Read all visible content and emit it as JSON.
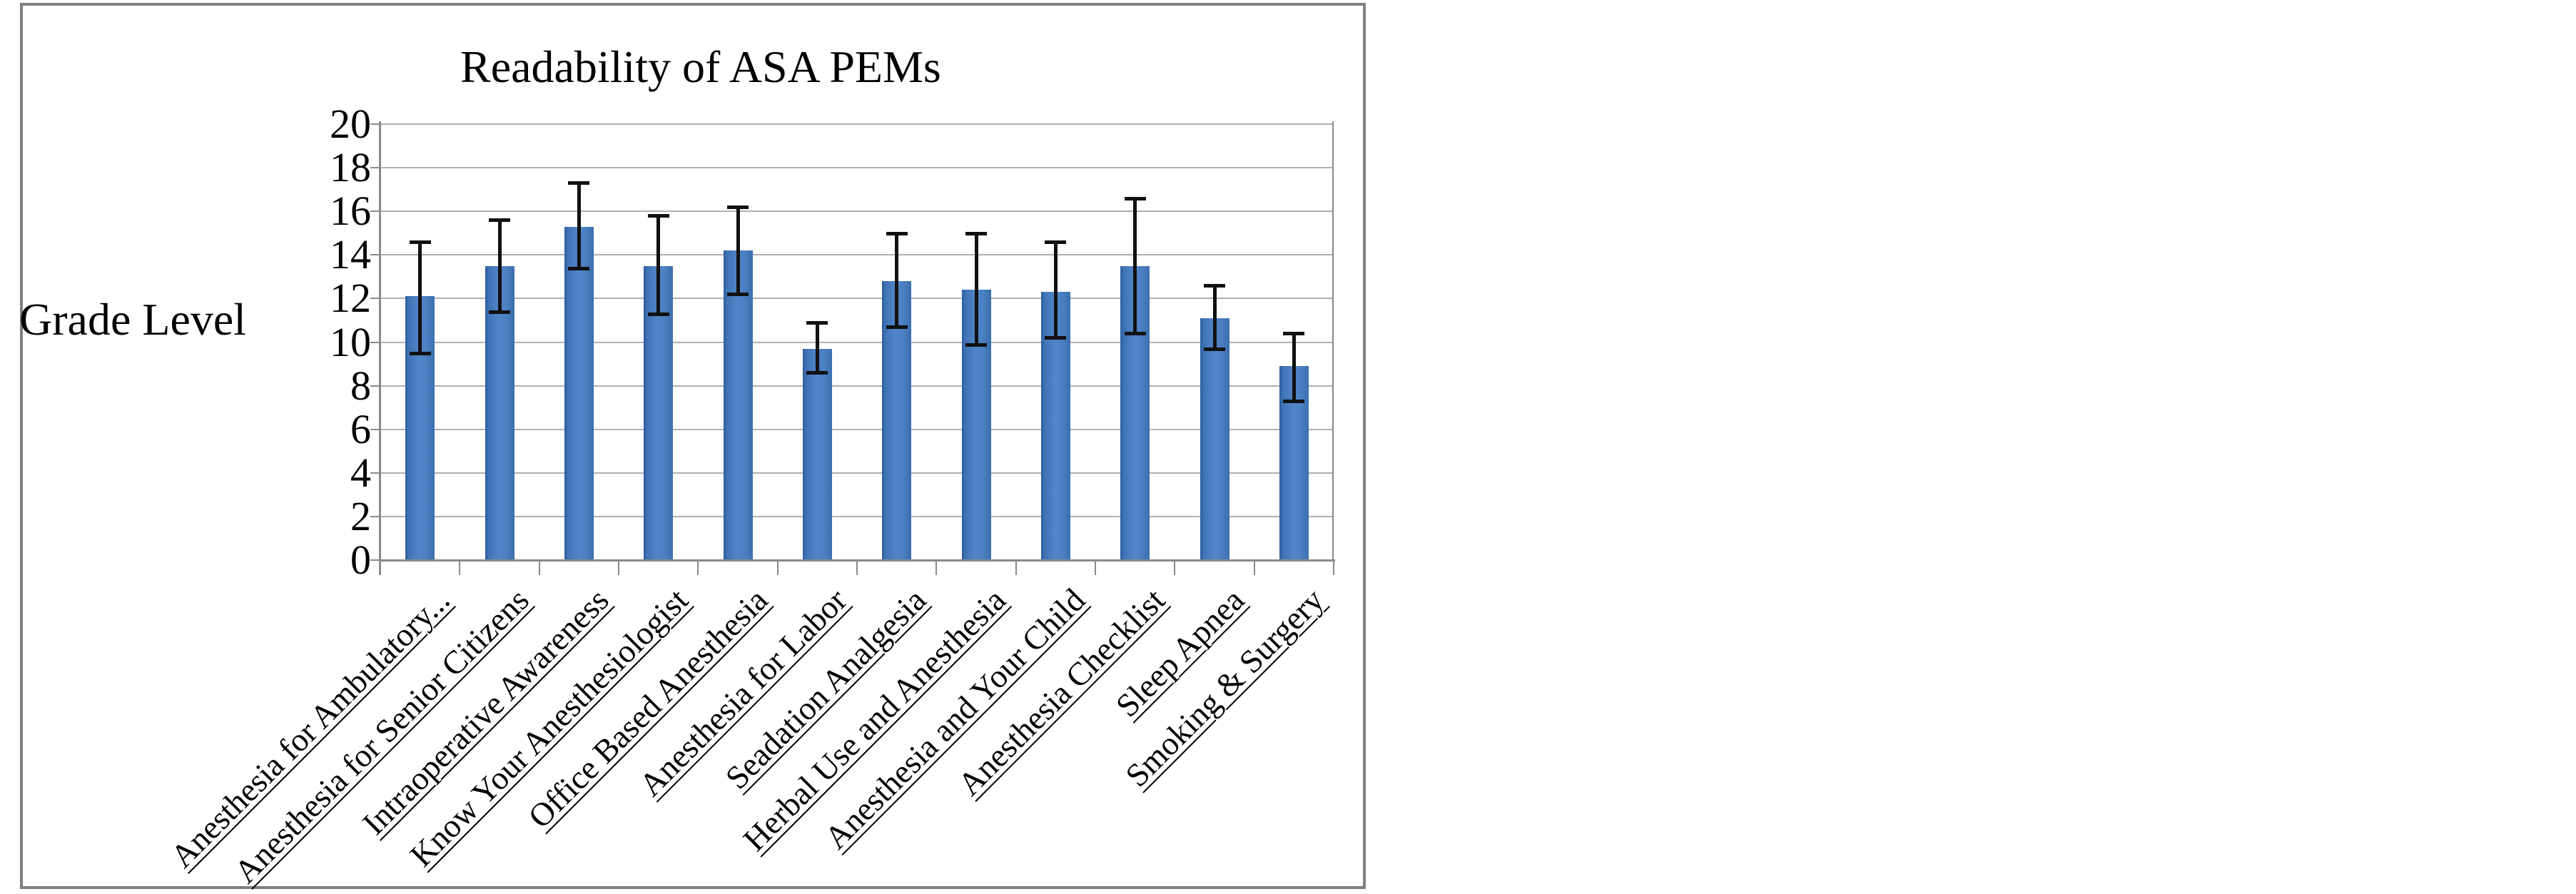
{
  "chart_data": {
    "type": "bar",
    "title": "Readability of ASA PEMs",
    "ylabel": "Grade Level",
    "xlabel": "",
    "ylim": [
      0,
      20
    ],
    "ytick_step": 2,
    "yticks": [
      0,
      2,
      4,
      6,
      8,
      10,
      12,
      14,
      16,
      18,
      20
    ],
    "grid": true,
    "legend": "none",
    "bar_color": "#4a7ebb",
    "error_bar_color": "#111111",
    "categories": [
      "Anesthesia for Ambulatory...",
      "Anesthesia for Senior Citizens",
      "Intraoperative Awareness",
      "Know Your Anesthesiologist",
      "Office Based Anesthesia",
      "Anesthesia for Labor",
      "Seadation Analgesia",
      "Herbal Use and Anesthesia",
      "Anesthesia and Your Child",
      "Anesthesia Checklist",
      "Sleep Apnea",
      "Smoking & Surgery"
    ],
    "series": [
      {
        "name": "Grade Level",
        "values": [
          12.1,
          13.5,
          15.3,
          13.5,
          14.2,
          9.7,
          12.8,
          12.4,
          12.3,
          13.5,
          11.1,
          8.9
        ],
        "error_low": [
          9.5,
          11.4,
          13.4,
          11.3,
          12.2,
          8.6,
          10.7,
          9.9,
          10.2,
          10.4,
          9.7,
          7.3
        ],
        "error_high": [
          14.6,
          15.6,
          17.3,
          15.8,
          16.2,
          10.9,
          15.0,
          15.0,
          14.6,
          16.6,
          12.6,
          10.4
        ]
      }
    ]
  }
}
